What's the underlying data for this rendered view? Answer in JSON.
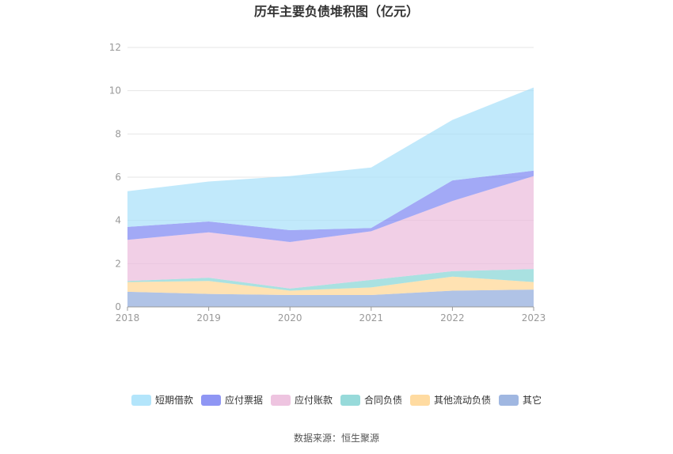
{
  "chart_data": {
    "type": "area",
    "stacked": true,
    "title": "历年主要负债堆积图（亿元）",
    "x": [
      "2018",
      "2019",
      "2020",
      "2021",
      "2022",
      "2023"
    ],
    "ylim": [
      0,
      12
    ],
    "yticks": [
      "0",
      "2",
      "4",
      "6",
      "8",
      "10",
      "12"
    ],
    "grid": true,
    "legend_position": "bottom",
    "series": [
      {
        "name": "其它",
        "color": "#8faadc",
        "values": [
          0.7,
          0.6,
          0.55,
          0.55,
          0.75,
          0.8
        ]
      },
      {
        "name": "其他流动负债",
        "color": "#ffd591",
        "values": [
          0.45,
          0.6,
          0.2,
          0.35,
          0.65,
          0.35
        ]
      },
      {
        "name": "合同负债",
        "color": "#85d4d4",
        "values": [
          0.05,
          0.15,
          0.1,
          0.35,
          0.25,
          0.6
        ]
      },
      {
        "name": "应付账款",
        "color": "#ebbadb",
        "values": [
          1.9,
          2.1,
          2.15,
          2.25,
          3.25,
          4.3
        ]
      },
      {
        "name": "应付票据",
        "color": "#7b84f2",
        "values": [
          0.6,
          0.5,
          0.55,
          0.15,
          0.95,
          0.25
        ]
      },
      {
        "name": "短期借款",
        "color": "#a6e0fa",
        "values": [
          1.65,
          1.85,
          2.5,
          2.8,
          2.8,
          3.85
        ]
      }
    ],
    "legend_order": [
      "短期借款",
      "应付票据",
      "应付账款",
      "合同负债",
      "其他流动负债",
      "其它"
    ]
  },
  "source_text": "数据来源：恒生聚源"
}
